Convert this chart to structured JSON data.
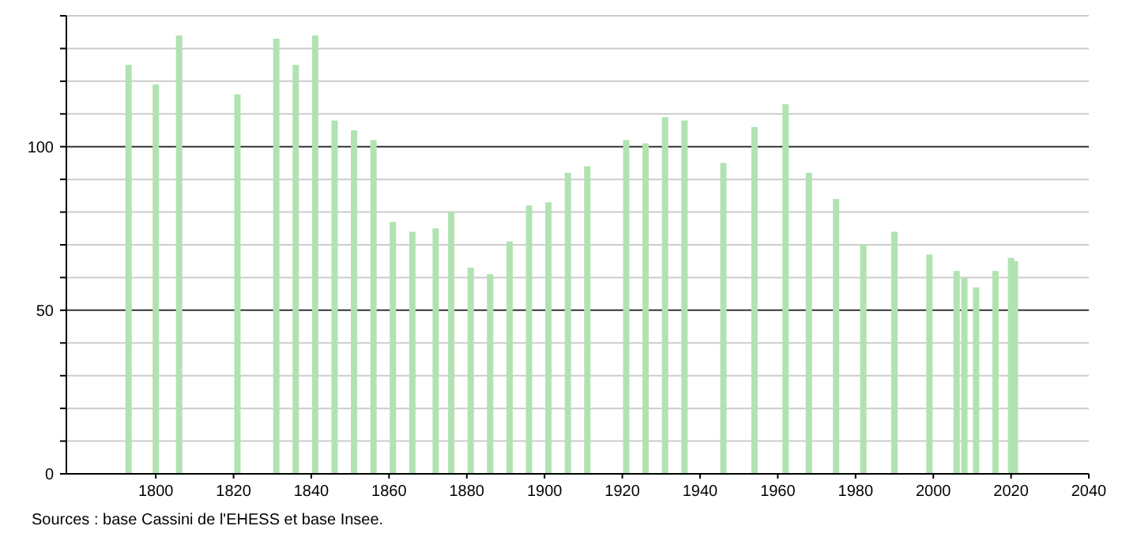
{
  "chart_data": {
    "type": "bar",
    "x": [
      1793,
      1800,
      1806,
      1821,
      1831,
      1836,
      1841,
      1846,
      1851,
      1856,
      1861,
      1866,
      1872,
      1876,
      1881,
      1886,
      1891,
      1896,
      1901,
      1906,
      1911,
      1921,
      1926,
      1931,
      1936,
      1946,
      1954,
      1962,
      1968,
      1975,
      1982,
      1990,
      1999,
      2006,
      2008,
      2011,
      2016,
      2020,
      2021
    ],
    "values": [
      125,
      119,
      134,
      116,
      133,
      125,
      134,
      108,
      105,
      102,
      77,
      74,
      75,
      80,
      63,
      61,
      71,
      82,
      83,
      92,
      94,
      102,
      101,
      109,
      108,
      95,
      106,
      113,
      92,
      84,
      70,
      74,
      67,
      62,
      60,
      57,
      62,
      66,
      65
    ],
    "color": "#b0e3b0",
    "xlim": [
      1777,
      2040
    ],
    "xticks": [
      1800,
      1820,
      1840,
      1860,
      1880,
      1900,
      1920,
      1940,
      1960,
      1980,
      2000,
      2020,
      2040
    ],
    "ylim": [
      0,
      140
    ],
    "yticks": [
      0,
      {
        "value": 10,
        "label": null
      },
      {
        "value": 20,
        "label": null
      },
      {
        "value": 30,
        "label": null
      },
      {
        "value": 40,
        "label": null
      },
      50,
      {
        "value": 60,
        "label": null
      },
      {
        "value": 70,
        "label": null
      },
      {
        "value": 80,
        "label": null
      },
      {
        "value": 90,
        "label": null
      },
      100,
      {
        "value": 110,
        "label": null
      },
      {
        "value": 120,
        "label": null
      },
      {
        "value": 130,
        "label": null
      },
      {
        "value": 140,
        "label": null
      }
    ],
    "grid": "y",
    "annotations": [
      "Sources : base Cassini de l'EHESS et base Insee."
    ]
  }
}
